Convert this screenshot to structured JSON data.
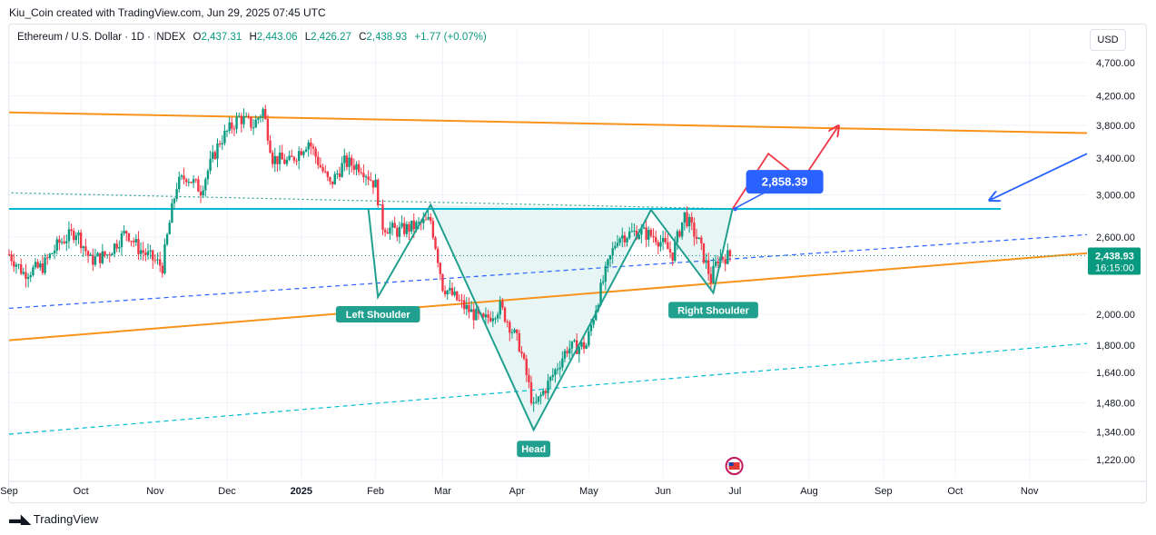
{
  "header": {
    "attribution": "Kiu_Coin created with TradingView.com, Jun 29, 2025 07:45 UTC"
  },
  "legend": {
    "symbol": "Ethereum / U.S. Dollar · 1D · INDEX",
    "open_label": "O",
    "open": "2,437.31",
    "high_label": "H",
    "high": "2,443.06",
    "low_label": "L",
    "low": "2,426.27",
    "close_label": "C",
    "close": "2,438.93",
    "change": "+1.77 (+0.07%)"
  },
  "currency_button": "USD",
  "footer": {
    "logo": "TradingView",
    "logo_icon": "tv-logo-icon"
  },
  "colors": {
    "up": "#089981",
    "down": "#f23645",
    "orange": "#f7931a",
    "teal": "#00bcd4",
    "blue": "#2962ff",
    "pattern": "#22a08f",
    "fill": "#e3f5f3"
  },
  "chart_data": {
    "type": "candlestick",
    "title": "Ethereum / U.S. Dollar · 1D · INDEX",
    "y_scale": "log",
    "ylim": [
      1150,
      5000
    ],
    "y_ticks": [
      1220,
      1340,
      1480,
      1640,
      1800,
      2000,
      2600,
      3000,
      3400,
      3800,
      4200,
      4700
    ],
    "y_tick_labels": [
      "1,220.00",
      "1,340.00",
      "1,480.00",
      "1,640.00",
      "1,800.00",
      "2,000.00",
      "2,600.00",
      "3,000.00",
      "3,400.00",
      "3,800.00",
      "4,200.00",
      "4,700.00"
    ],
    "x_tick_labels": [
      "Sep",
      "Oct",
      "Nov",
      "Dec",
      "2025",
      "Feb",
      "Mar",
      "Apr",
      "May",
      "Jun",
      "Jul",
      "Aug",
      "Sep",
      "Oct",
      "Nov"
    ],
    "x_tick_dates": [
      "2024-09-01",
      "2024-10-01",
      "2024-11-01",
      "2024-12-01",
      "2025-01-01",
      "2025-02-01",
      "2025-03-01",
      "2025-04-01",
      "2025-05-01",
      "2025-06-01",
      "2025-07-01",
      "2025-08-01",
      "2025-09-01",
      "2025-10-01",
      "2025-11-01"
    ],
    "x_range": [
      "2024-09-01",
      "2025-11-25"
    ],
    "price_path": [
      [
        "2024-09-01",
        2450
      ],
      [
        "2024-09-07",
        2300
      ],
      [
        "2024-09-15",
        2350
      ],
      [
        "2024-09-22",
        2550
      ],
      [
        "2024-09-29",
        2650
      ],
      [
        "2024-10-05",
        2400
      ],
      [
        "2024-10-12",
        2450
      ],
      [
        "2024-10-20",
        2650
      ],
      [
        "2024-10-25",
        2500
      ],
      [
        "2024-11-04",
        2350
      ],
      [
        "2024-11-10",
        3100
      ],
      [
        "2024-11-14",
        3200
      ],
      [
        "2024-11-20",
        3050
      ],
      [
        "2024-11-28",
        3600
      ],
      [
        "2024-12-06",
        3900
      ],
      [
        "2024-12-12",
        3800
      ],
      [
        "2024-12-16",
        4000
      ],
      [
        "2024-12-20",
        3400
      ],
      [
        "2024-12-27",
        3350
      ],
      [
        "2025-01-04",
        3600
      ],
      [
        "2025-01-09",
        3300
      ],
      [
        "2025-01-13",
        3100
      ],
      [
        "2025-01-19",
        3350
      ],
      [
        "2025-01-26",
        3300
      ],
      [
        "2025-02-01",
        3100
      ],
      [
        "2025-02-04",
        2700
      ],
      [
        "2025-02-10",
        2650
      ],
      [
        "2025-02-18",
        2700
      ],
      [
        "2025-02-24",
        2750
      ],
      [
        "2025-03-01",
        2200
      ],
      [
        "2025-03-10",
        2050
      ],
      [
        "2025-03-18",
        1950
      ],
      [
        "2025-03-25",
        2050
      ],
      [
        "2025-04-02",
        1800
      ],
      [
        "2025-04-08",
        1450
      ],
      [
        "2025-04-15",
        1600
      ],
      [
        "2025-04-22",
        1780
      ],
      [
        "2025-04-30",
        1800
      ],
      [
        "2025-05-08",
        2300
      ],
      [
        "2025-05-13",
        2600
      ],
      [
        "2025-05-22",
        2650
      ],
      [
        "2025-05-29",
        2600
      ],
      [
        "2025-06-05",
        2450
      ],
      [
        "2025-06-10",
        2800
      ],
      [
        "2025-06-16",
        2550
      ],
      [
        "2025-06-21",
        2250
      ],
      [
        "2025-06-24",
        2420
      ],
      [
        "2025-06-29",
        2438.93
      ]
    ],
    "last_price": 2438.93,
    "last_price_label": "2,438.93",
    "countdown_label": "16:15:00",
    "current_price_tag": "2,858.39",
    "annotations": [
      {
        "label": "Left Shoulder",
        "date": "2025-02-02",
        "price": 2120
      },
      {
        "label": "Head",
        "date": "2025-04-08",
        "price": 1350
      },
      {
        "label": "Right Shoulder",
        "date": "2025-06-22",
        "price": 2150
      }
    ],
    "pattern_points": [
      [
        "2025-01-29",
        2860
      ],
      [
        "2025-02-02",
        2120
      ],
      [
        "2025-02-24",
        2900
      ],
      [
        "2025-04-08",
        1350
      ],
      [
        "2025-05-27",
        2850
      ],
      [
        "2025-06-22",
        2150
      ],
      [
        "2025-06-30",
        2858
      ]
    ],
    "projection_path": [
      [
        "2025-06-30",
        2858
      ],
      [
        "2025-07-15",
        3450
      ],
      [
        "2025-07-29",
        3150
      ],
      [
        "2025-08-13",
        3780
      ]
    ],
    "lines": [
      {
        "name": "neckline",
        "style": "solid",
        "color": "#00bcd4",
        "from": [
          "2024-09-01",
          2860
        ],
        "to": [
          "2025-10-20",
          2860
        ]
      },
      {
        "name": "upper-channel",
        "style": "solid",
        "color": "#f7931a",
        "from": [
          "2024-09-01",
          3970
        ],
        "to": [
          "2025-11-25",
          3700
        ]
      },
      {
        "name": "lower-channel",
        "style": "solid",
        "color": "#f7931a",
        "from": [
          "2024-09-01",
          1830
        ],
        "to": [
          "2025-11-25",
          2460
        ]
      },
      {
        "name": "dotted-resistance",
        "style": "dotted",
        "color": "#22a08f",
        "from": [
          "2024-09-02",
          3020
        ],
        "to": [
          "2025-06-30",
          2860
        ]
      },
      {
        "name": "mid-channel",
        "style": "dashed",
        "color": "#2962ff",
        "from": [
          "2024-09-01",
          2040
        ],
        "to": [
          "2025-11-25",
          2620
        ]
      },
      {
        "name": "lower-dashed",
        "style": "dashed",
        "color": "#00bcd4",
        "from": [
          "2024-09-01",
          1330
        ],
        "to": [
          "2025-11-25",
          1810
        ]
      }
    ],
    "arrow_blue": {
      "from": [
        "2025-11-25",
        3450
      ],
      "to": [
        "2025-10-15",
        2950
      ]
    },
    "grid": true,
    "legend_position": "top-left"
  }
}
